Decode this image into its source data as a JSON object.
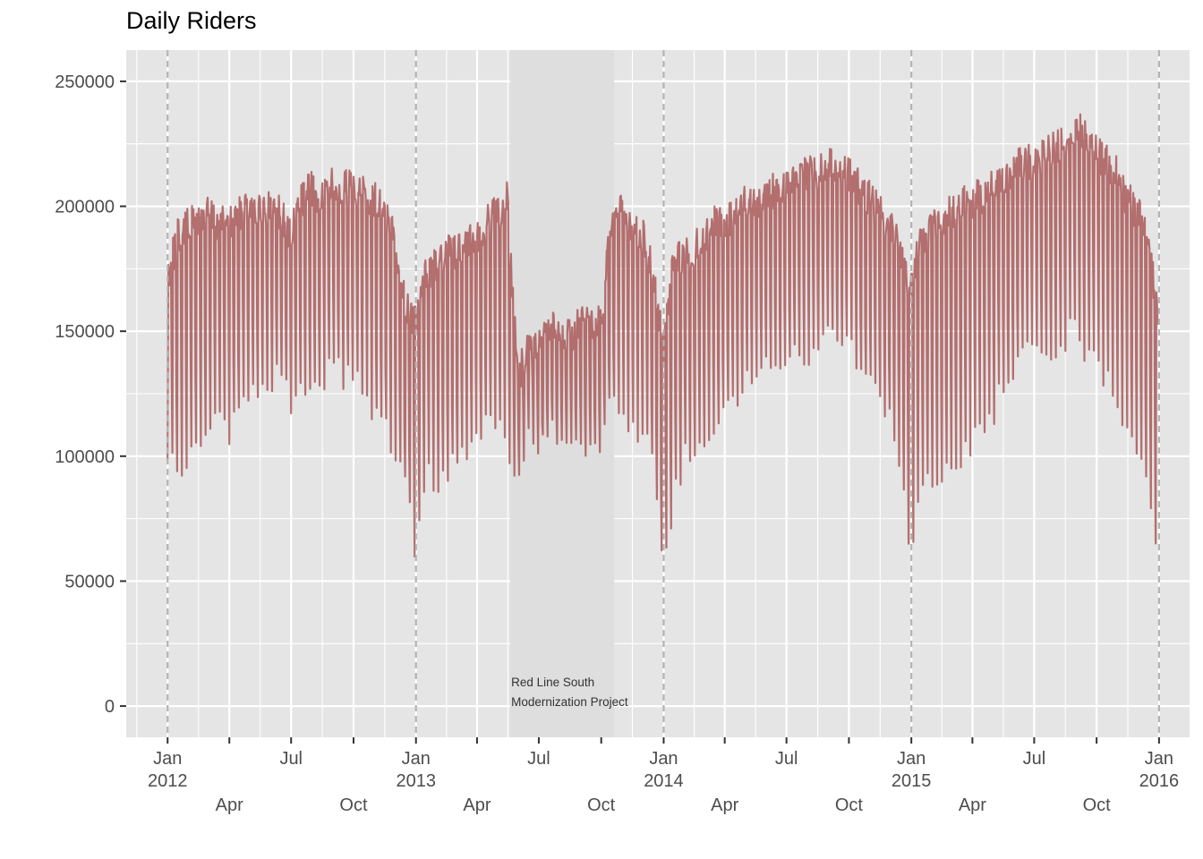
{
  "chart_data": {
    "type": "line",
    "title": "Daily Riders",
    "xlabel": "",
    "ylabel": "",
    "x_range": [
      "2011-11-01",
      "2016-02-15"
    ],
    "ylim": [
      -12500,
      262500
    ],
    "y_ticks": [
      0,
      50000,
      100000,
      150000,
      200000,
      250000
    ],
    "y_tick_labels": [
      "0",
      "50000",
      "100000",
      "150000",
      "200000",
      "250000"
    ],
    "x_major_ticks": [
      {
        "date": "2012-01-01",
        "lines": [
          "Jan",
          "2012"
        ]
      },
      {
        "date": "2012-04-01",
        "lines": [
          "",
          "",
          "Apr"
        ]
      },
      {
        "date": "2012-07-01",
        "lines": [
          "Jul"
        ]
      },
      {
        "date": "2012-10-01",
        "lines": [
          "",
          "",
          "Oct"
        ]
      },
      {
        "date": "2013-01-01",
        "lines": [
          "Jan",
          "2013"
        ]
      },
      {
        "date": "2013-04-01",
        "lines": [
          "",
          "",
          "Apr"
        ]
      },
      {
        "date": "2013-07-01",
        "lines": [
          "Jul"
        ]
      },
      {
        "date": "2013-10-01",
        "lines": [
          "",
          "",
          "Oct"
        ]
      },
      {
        "date": "2014-01-01",
        "lines": [
          "Jan",
          "2014"
        ]
      },
      {
        "date": "2014-04-01",
        "lines": [
          "",
          "",
          "Apr"
        ]
      },
      {
        "date": "2014-07-01",
        "lines": [
          "Jul"
        ]
      },
      {
        "date": "2014-10-01",
        "lines": [
          "",
          "",
          "Oct"
        ]
      },
      {
        "date": "2015-01-01",
        "lines": [
          "Jan",
          "2015"
        ]
      },
      {
        "date": "2015-04-01",
        "lines": [
          "",
          "",
          "Apr"
        ]
      },
      {
        "date": "2015-07-01",
        "lines": [
          "Jul"
        ]
      },
      {
        "date": "2015-10-01",
        "lines": [
          "",
          "",
          "Oct"
        ]
      },
      {
        "date": "2016-01-01",
        "lines": [
          "Jan",
          "2016"
        ]
      }
    ],
    "year_boundaries": [
      "2012-01-01",
      "2013-01-01",
      "2014-01-01",
      "2015-01-01",
      "2016-01-01"
    ],
    "shaded_period": {
      "start": "2013-05-20",
      "end": "2013-10-20",
      "label": [
        "Red Line South",
        "Modernization Project"
      ]
    },
    "grid": true,
    "colors": {
      "panel": "#e5e5e5",
      "grid": "#ffffff",
      "line": "#a65050",
      "shade": "#dedede",
      "boundary": "#b3b3b3"
    },
    "series": [
      {
        "granularity": "approximate weekly envelope of daily values",
        "x": [
          "2012-01-01",
          "2012-01-15",
          "2012-02-01",
          "2012-02-15",
          "2012-03-01",
          "2012-03-15",
          "2012-04-01",
          "2012-04-15",
          "2012-05-01",
          "2012-05-15",
          "2012-06-01",
          "2012-06-15",
          "2012-07-01",
          "2012-07-15",
          "2012-08-01",
          "2012-08-15",
          "2012-09-01",
          "2012-09-15",
          "2012-10-01",
          "2012-10-15",
          "2012-11-01",
          "2012-11-15",
          "2012-12-01",
          "2012-12-15",
          "2013-01-01",
          "2013-01-15",
          "2013-02-01",
          "2013-02-15",
          "2013-03-01",
          "2013-03-15",
          "2013-04-01",
          "2013-04-15",
          "2013-05-01",
          "2013-05-15",
          "2013-06-01",
          "2013-06-15",
          "2013-07-01",
          "2013-07-15",
          "2013-08-01",
          "2013-08-15",
          "2013-09-01",
          "2013-09-15",
          "2013-10-01",
          "2013-10-15",
          "2013-11-01",
          "2013-11-15",
          "2013-12-01",
          "2013-12-15",
          "2014-01-01",
          "2014-01-15",
          "2014-02-01",
          "2014-02-15",
          "2014-03-01",
          "2014-03-15",
          "2014-04-01",
          "2014-04-15",
          "2014-05-01",
          "2014-05-15",
          "2014-06-01",
          "2014-06-15",
          "2014-07-01",
          "2014-07-15",
          "2014-08-01",
          "2014-08-15",
          "2014-09-01",
          "2014-09-15",
          "2014-10-01",
          "2014-10-15",
          "2014-11-01",
          "2014-11-15",
          "2014-12-01",
          "2014-12-15",
          "2015-01-01",
          "2015-01-15",
          "2015-02-01",
          "2015-02-15",
          "2015-03-01",
          "2015-03-15",
          "2015-04-01",
          "2015-04-15",
          "2015-05-01",
          "2015-05-15",
          "2015-06-01",
          "2015-06-15",
          "2015-07-01",
          "2015-07-15",
          "2015-08-01",
          "2015-08-15",
          "2015-09-01",
          "2015-09-15",
          "2015-10-01",
          "2015-10-15",
          "2015-11-01",
          "2015-11-15",
          "2015-12-01",
          "2015-12-15",
          "2015-12-31"
        ],
        "weekday_high": [
          180000,
          195000,
          200000,
          202000,
          205000,
          200000,
          200000,
          205000,
          210000,
          205000,
          208000,
          205000,
          195000,
          210000,
          215000,
          210000,
          218000,
          215000,
          215000,
          212000,
          210000,
          205000,
          195000,
          170000,
          160000,
          180000,
          185000,
          188000,
          190000,
          195000,
          195000,
          200000,
          205000,
          210000,
          140000,
          150000,
          150000,
          160000,
          158000,
          155000,
          160000,
          162000,
          160000,
          200000,
          205000,
          200000,
          195000,
          185000,
          150000,
          185000,
          188000,
          190000,
          195000,
          200000,
          200000,
          205000,
          210000,
          210000,
          212000,
          215000,
          215000,
          218000,
          220000,
          222000,
          225000,
          222000,
          220000,
          215000,
          210000,
          205000,
          200000,
          190000,
          175000,
          195000,
          198000,
          200000,
          205000,
          208000,
          210000,
          212000,
          215000,
          220000,
          222000,
          225000,
          225000,
          228000,
          230000,
          235000,
          240000,
          235000,
          230000,
          225000,
          220000,
          210000,
          205000,
          195000,
          165000
        ],
        "weekend_low": [
          95000,
          93000,
          98000,
          100000,
          110000,
          115000,
          105000,
          118000,
          120000,
          125000,
          128000,
          130000,
          120000,
          125000,
          130000,
          128000,
          135000,
          130000,
          130000,
          125000,
          115000,
          110000,
          100000,
          85000,
          60000,
          90000,
          88000,
          92000,
          95000,
          100000,
          105000,
          110000,
          115000,
          100000,
          90000,
          110000,
          100000,
          108000,
          105000,
          100000,
          105000,
          100000,
          105000,
          120000,
          115000,
          110000,
          108000,
          95000,
          50000,
          80000,
          98000,
          100000,
          105000,
          110000,
          115000,
          120000,
          125000,
          130000,
          132000,
          135000,
          130000,
          138000,
          140000,
          140000,
          145000,
          140000,
          140000,
          135000,
          125000,
          120000,
          110000,
          95000,
          55000,
          88000,
          88000,
          90000,
          95000,
          98000,
          105000,
          110000,
          115000,
          125000,
          130000,
          140000,
          140000,
          135000,
          140000,
          145000,
          150000,
          140000,
          135000,
          130000,
          120000,
          110000,
          100000,
          85000,
          60000
        ]
      }
    ]
  }
}
